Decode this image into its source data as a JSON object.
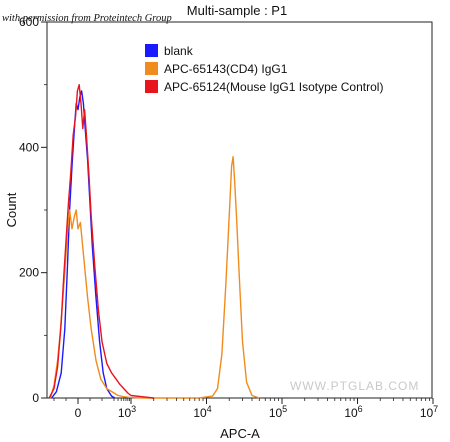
{
  "permission_note": "with permission from Proteintech Group",
  "watermark": "WWW.PTGLAB.COM",
  "chart_data": {
    "type": "line",
    "title": "Multi-sample : P1",
    "xlabel": "APC-A",
    "ylabel": "Count",
    "x_scale": "biexponential",
    "x_ticks": [
      {
        "value": 0,
        "label": "0"
      },
      {
        "value": 1000,
        "label": "10",
        "sup": "3"
      },
      {
        "value": 10000,
        "label": "10",
        "sup": "4"
      },
      {
        "value": 100000,
        "label": "10",
        "sup": "5"
      },
      {
        "value": 1000000,
        "label": "10",
        "sup": "6"
      },
      {
        "value": 10000000,
        "label": "10",
        "sup": "7"
      }
    ],
    "ylim": [
      0,
      600
    ],
    "y_ticks": [
      {
        "value": 0,
        "label": "0"
      },
      {
        "value": 200,
        "label": "200"
      },
      {
        "value": 400,
        "label": "400"
      },
      {
        "value": 600,
        "label": "600"
      }
    ],
    "grid": false,
    "legend": "top-center",
    "series": [
      {
        "name": "blank",
        "color": "#1a1aff",
        "points": [
          [
            -220,
            0
          ],
          [
            -180,
            10
          ],
          [
            -140,
            40
          ],
          [
            -110,
            110
          ],
          [
            -90,
            200
          ],
          [
            -70,
            300
          ],
          [
            -50,
            370
          ],
          [
            -30,
            430
          ],
          [
            -15,
            470
          ],
          [
            0,
            460
          ],
          [
            15,
            480
          ],
          [
            30,
            490
          ],
          [
            45,
            470
          ],
          [
            60,
            430
          ],
          [
            80,
            380
          ],
          [
            100,
            310
          ],
          [
            120,
            240
          ],
          [
            150,
            160
          ],
          [
            180,
            90
          ],
          [
            210,
            40
          ],
          [
            240,
            15
          ],
          [
            280,
            3
          ],
          [
            320,
            0
          ]
        ]
      },
      {
        "name": "APC-65143(CD4) IgG1",
        "color": "#f08c1e",
        "points": [
          [
            -230,
            0
          ],
          [
            -200,
            20
          ],
          [
            -170,
            60
          ],
          [
            -150,
            100
          ],
          [
            -130,
            150
          ],
          [
            -110,
            200
          ],
          [
            -90,
            260
          ],
          [
            -70,
            300
          ],
          [
            -50,
            270
          ],
          [
            -30,
            290
          ],
          [
            -15,
            300
          ],
          [
            0,
            270
          ],
          [
            20,
            280
          ],
          [
            40,
            240
          ],
          [
            60,
            200
          ],
          [
            80,
            160
          ],
          [
            110,
            110
          ],
          [
            150,
            60
          ],
          [
            190,
            30
          ],
          [
            240,
            15
          ],
          [
            300,
            8
          ],
          [
            400,
            4
          ],
          [
            600,
            2
          ],
          [
            900,
            1
          ],
          [
            1500,
            0
          ],
          [
            3000,
            0
          ],
          [
            8000,
            0
          ],
          [
            12000,
            3
          ],
          [
            14000,
            15
          ],
          [
            16000,
            70
          ],
          [
            18000,
            180
          ],
          [
            20000,
            290
          ],
          [
            21500,
            370
          ],
          [
            22500,
            385
          ],
          [
            23500,
            350
          ],
          [
            25000,
            290
          ],
          [
            27000,
            200
          ],
          [
            30000,
            90
          ],
          [
            34000,
            25
          ],
          [
            40000,
            4
          ],
          [
            50000,
            0
          ]
        ]
      },
      {
        "name": "APC-65124(Mouse IgG1 Isotype Control)",
        "color": "#e8141e",
        "points": [
          [
            -240,
            0
          ],
          [
            -200,
            15
          ],
          [
            -170,
            50
          ],
          [
            -140,
            120
          ],
          [
            -120,
            190
          ],
          [
            -100,
            250
          ],
          [
            -80,
            310
          ],
          [
            -60,
            360
          ],
          [
            -40,
            420
          ],
          [
            -20,
            450
          ],
          [
            -5,
            490
          ],
          [
            10,
            500
          ],
          [
            25,
            470
          ],
          [
            40,
            430
          ],
          [
            55,
            460
          ],
          [
            70,
            420
          ],
          [
            90,
            360
          ],
          [
            110,
            290
          ],
          [
            140,
            210
          ],
          [
            170,
            140
          ],
          [
            200,
            90
          ],
          [
            240,
            55
          ],
          [
            280,
            40
          ],
          [
            350,
            30
          ],
          [
            450,
            22
          ],
          [
            600,
            15
          ],
          [
            800,
            8
          ],
          [
            1000,
            4
          ],
          [
            1400,
            2
          ],
          [
            2000,
            0
          ]
        ]
      }
    ]
  }
}
